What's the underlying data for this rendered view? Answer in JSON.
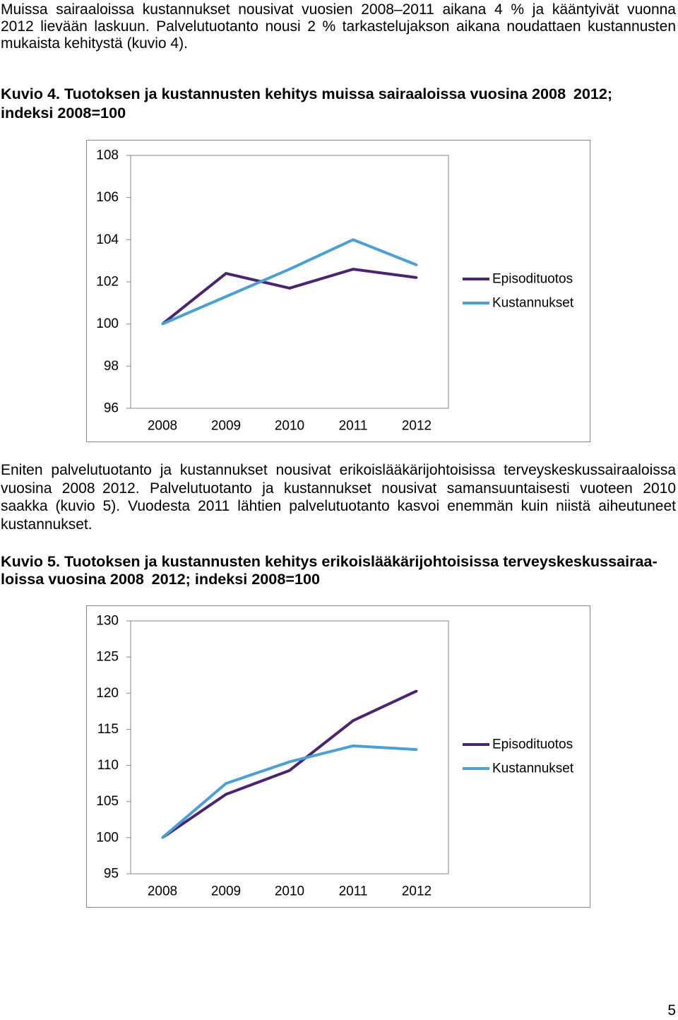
{
  "document": {
    "para1": [
      "Muissa sairaaloissa kustannukset nousivat vuosien 2008–2011 aikana 4 % ja kääntyivät vuonna",
      "2012 lievään laskuun. Palvelutuotanto nousi 2 % tarkastelujakson aikana noudattaen kustannusten",
      "mukaista kehitystä (kuvio 4)."
    ],
    "caption4": [
      "Kuvio 4. Tuotoksen ja kustannusten kehitys muissa sairaaloissa vuosina 2008 2012;",
      "indeksi 2008=100"
    ],
    "para2": [
      "Eniten palvelutuotanto ja kustannukset nousivat erikoislääkärijohtoisissa terveyskeskussairaaloissa",
      "vuosina 2008 2012. Palvelutuotanto ja kustannukset nousivat samansuuntaisesti vuoteen 2010",
      "saakka (kuvio 5). Vuodesta 2011 lähtien palvelutuotanto kasvoi enemmän kuin niistä aiheutuneet",
      "kustannukset."
    ],
    "caption5": [
      "Kuvio 5. Tuotoksen ja kustannusten kehitys erikoislääkärijohtoisissa terveyskeskussairaa-",
      "loissa vuosina 2008 2012; indeksi 2008=100"
    ],
    "page_number": "5"
  },
  "chart_data": [
    {
      "type": "line",
      "categories": [
        "2008",
        "2009",
        "2010",
        "2011",
        "2012"
      ],
      "series": [
        {
          "name": "Episodituotos",
          "color": "#4b2471",
          "values": [
            100,
            102.4,
            101.7,
            102.6,
            102.2
          ]
        },
        {
          "name": "Kustannukset",
          "color": "#4a9fd5",
          "values": [
            100,
            101.3,
            102.6,
            104.0,
            102.8
          ]
        }
      ],
      "ylim": [
        96,
        108
      ],
      "yticks": [
        96,
        98,
        100,
        102,
        104,
        106,
        108
      ],
      "grid": false,
      "legend": "right"
    },
    {
      "type": "line",
      "categories": [
        "2008",
        "2009",
        "2010",
        "2011",
        "2012"
      ],
      "series": [
        {
          "name": "Episodituotos",
          "color": "#4b2471",
          "values": [
            100,
            106.0,
            109.3,
            116.2,
            120.3
          ]
        },
        {
          "name": "Kustannukset",
          "color": "#4a9fd5",
          "values": [
            100,
            107.5,
            110.5,
            112.7,
            112.2
          ]
        }
      ],
      "ylim": [
        95,
        130
      ],
      "yticks": [
        95,
        100,
        105,
        110,
        115,
        120,
        125,
        130
      ],
      "grid": false,
      "legend": "right"
    }
  ]
}
